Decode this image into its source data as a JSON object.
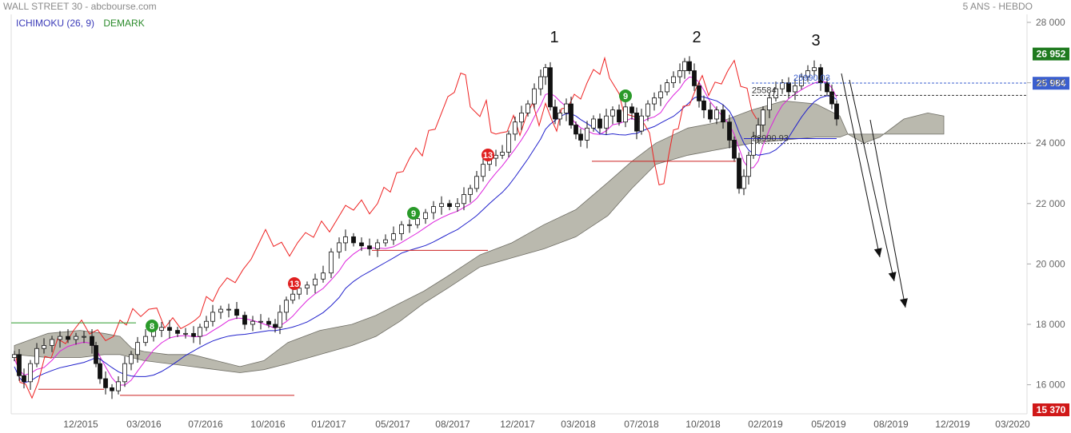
{
  "header": {
    "title": "WALL STREET 30 - abcbourse.com",
    "period": "5 ANS - HEBDO"
  },
  "legend": {
    "ichimoku": "ICHIMOKU (26, 9)",
    "demark": "DEMARK"
  },
  "colors": {
    "tenkan": "#dd22dd",
    "kijun": "#2222cc",
    "chikou": "#ee2222",
    "cloud": "#bab9ae",
    "demark_setup": "#2a9a2a",
    "demark_countdown": "#e02020",
    "last_price_badge": "#1f7a1f",
    "level_badge": "#3b5fcf",
    "low_badge": "#d01818"
  },
  "chart_data": {
    "type": "candlestick",
    "title": "WALL STREET 30",
    "ylim": [
      15370,
      28000
    ],
    "y_ticks": [
      "28 000",
      "26 000",
      "24 000",
      "22 000",
      "20 000",
      "18 000",
      "16 000"
    ],
    "x_ticks": [
      "12/2015",
      "03/2016",
      "07/2016",
      "10/2016",
      "01/2017",
      "05/2017",
      "08/2017",
      "12/2017",
      "03/2018",
      "07/2018",
      "10/2018",
      "02/2019",
      "05/2019",
      "08/2019",
      "12/2019",
      "03/2020"
    ],
    "price_badges": [
      {
        "label": "26 952",
        "value": 26952,
        "kind": "high"
      },
      {
        "label": "25 984",
        "value": 25984,
        "kind": "level"
      },
      {
        "label": "15 370",
        "value": 15370,
        "kind": "low"
      }
    ],
    "level_lines": [
      {
        "label": "25584",
        "value": 25584
      },
      {
        "label": "25990.03",
        "value": 25990
      },
      {
        "label": "23990.93",
        "value": 23990
      }
    ],
    "peak_labels": [
      "1",
      "2",
      "3"
    ],
    "demark_badges": [
      {
        "label": "8",
        "kind": "setup"
      },
      {
        "label": "13",
        "kind": "countdown"
      },
      {
        "label": "9",
        "kind": "setup"
      },
      {
        "label": "13",
        "kind": "countdown"
      },
      {
        "label": "9",
        "kind": "setup"
      }
    ]
  }
}
